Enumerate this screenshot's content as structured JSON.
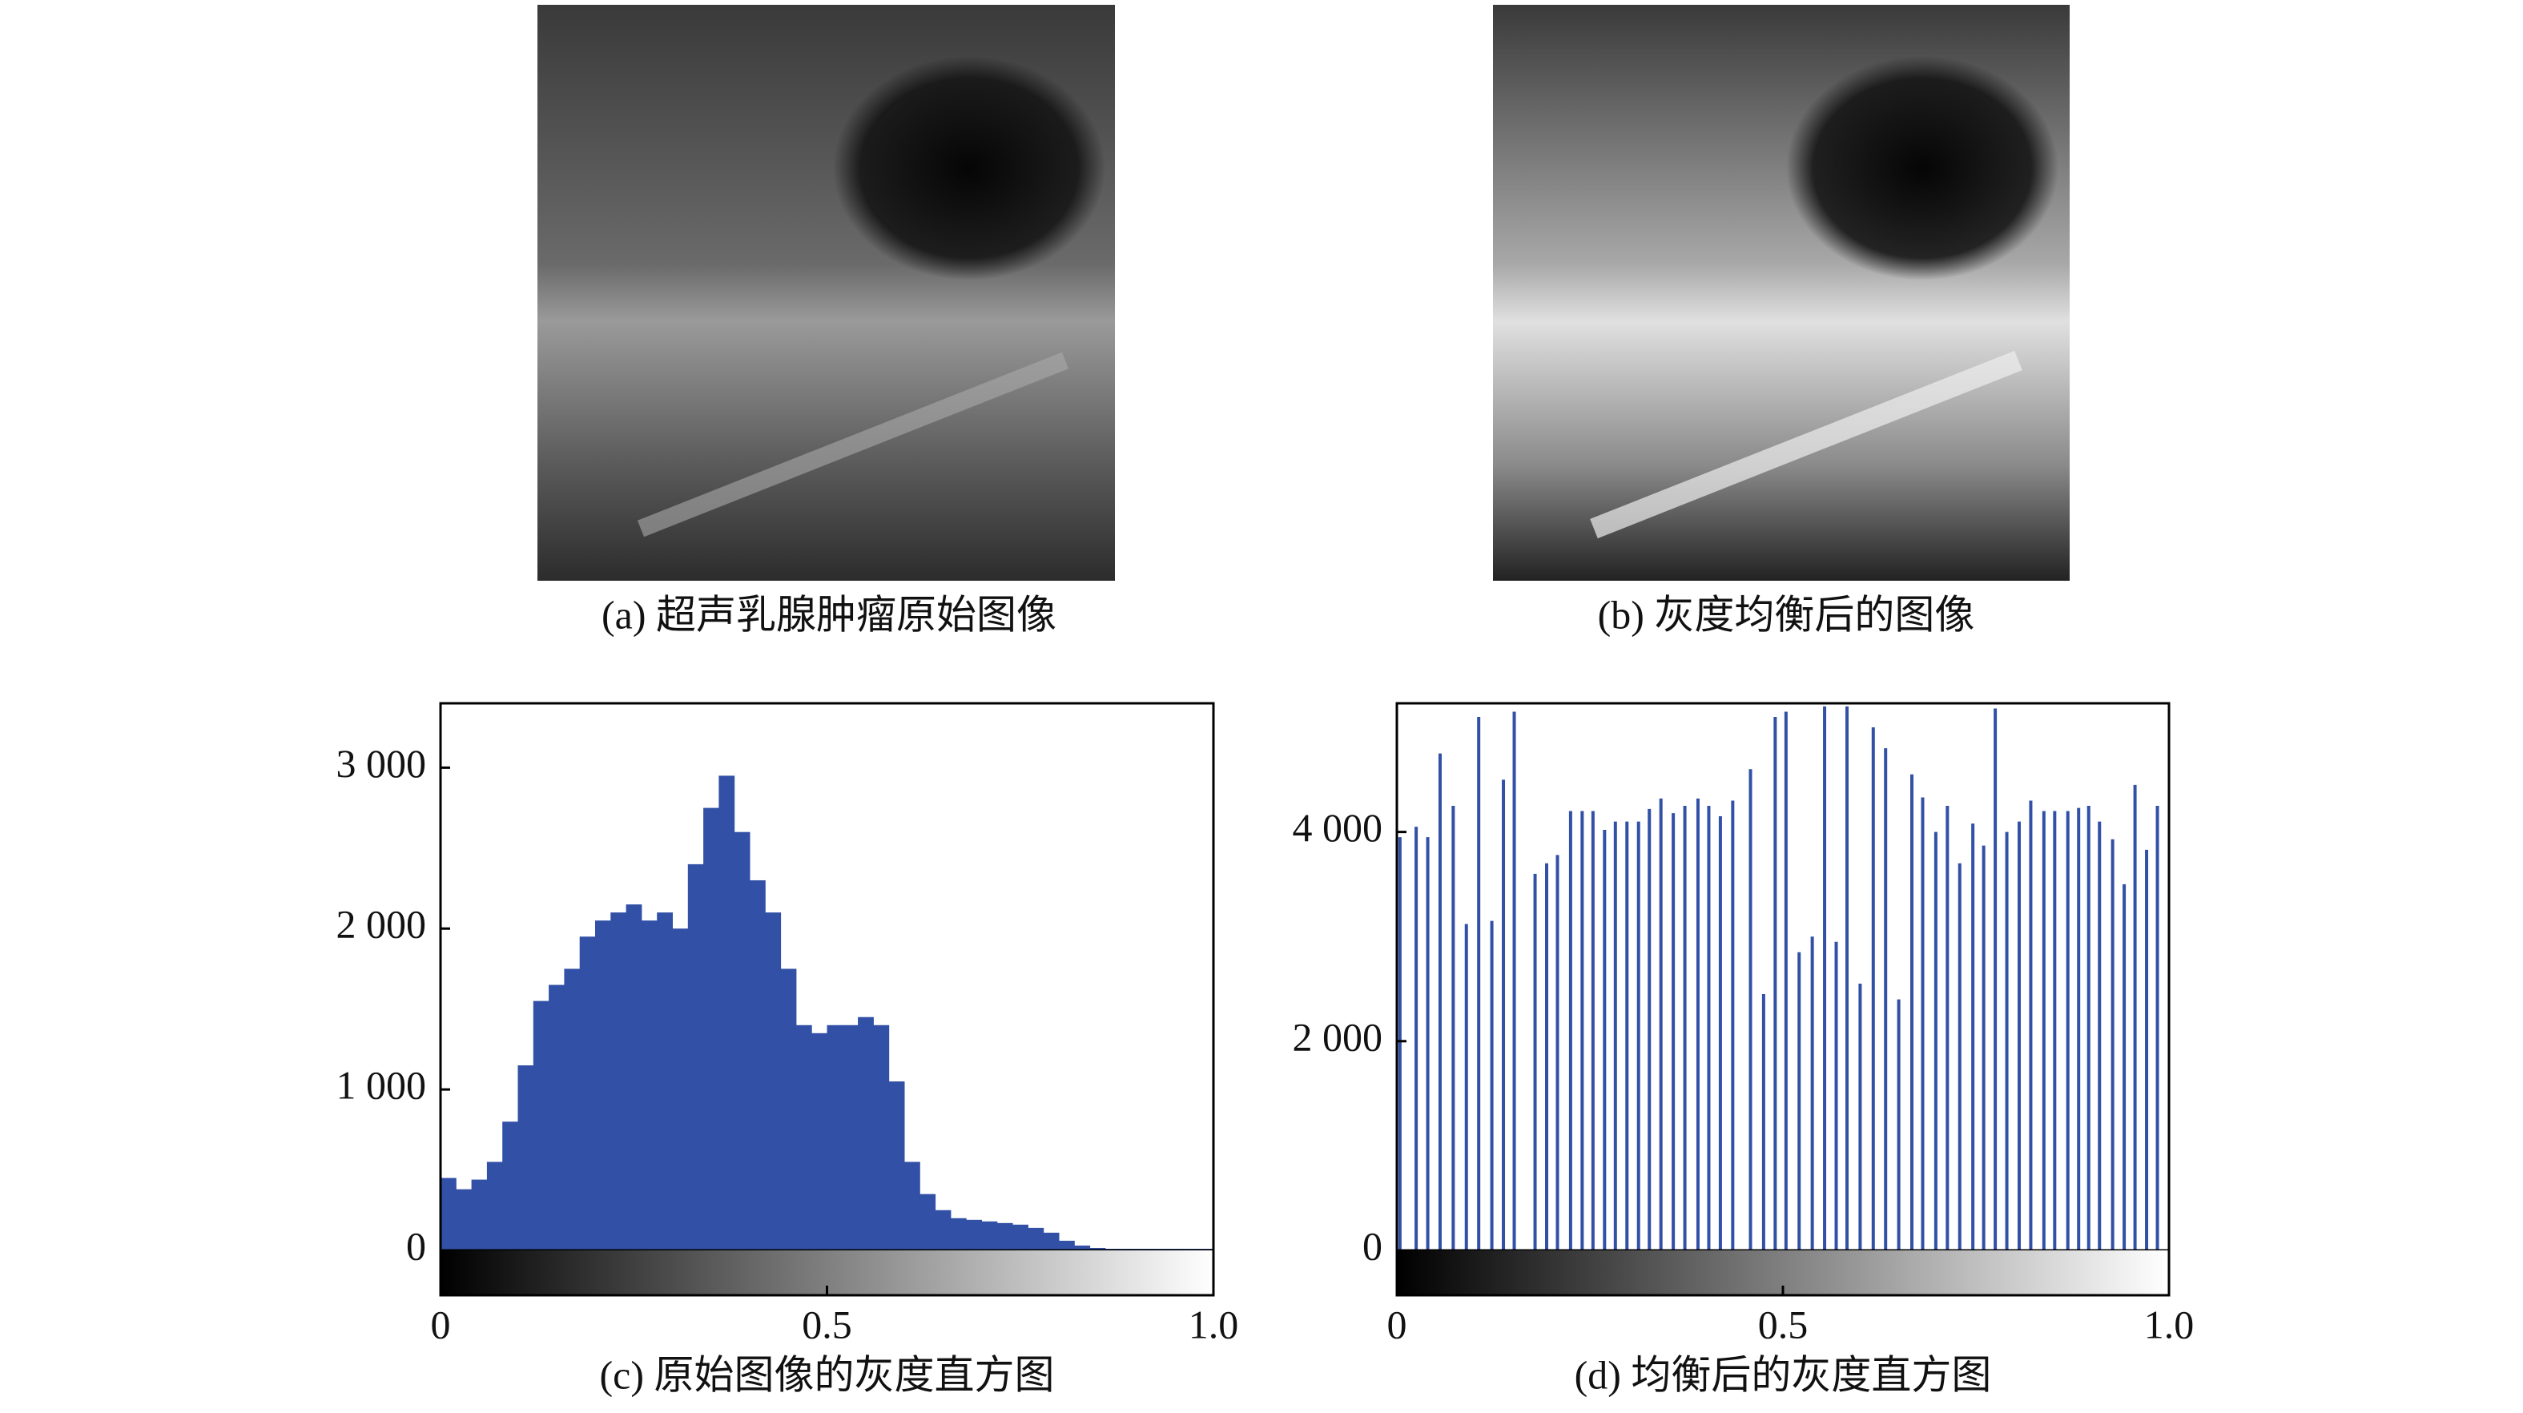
{
  "figures": [
    {
      "caption": "(a) 超声乳腺肿瘤原始图像"
    },
    {
      "caption": "(b) 灰度均衡后的图像"
    }
  ],
  "chart_data": [
    {
      "type": "histogram",
      "caption": "(c) 原始图像的灰度直方图",
      "color": "#3150a6",
      "bins": [
        0,
        0.02,
        0.04,
        0.06,
        0.08,
        0.1,
        0.12,
        0.14,
        0.16,
        0.18,
        0.2,
        0.22,
        0.24,
        0.26,
        0.28,
        0.3,
        0.32,
        0.34,
        0.36,
        0.38,
        0.4,
        0.42,
        0.44,
        0.46,
        0.48,
        0.5,
        0.52,
        0.54,
        0.56,
        0.58,
        0.6,
        0.62,
        0.64,
        0.66,
        0.68,
        0.7,
        0.72,
        0.74,
        0.76,
        0.78,
        0.8,
        0.82,
        0.84,
        0.86,
        0.88,
        0.9,
        0.92,
        0.94,
        0.96,
        0.98,
        1
      ],
      "values": [
        450,
        380,
        440,
        550,
        800,
        1150,
        1550,
        1650,
        1750,
        1950,
        2050,
        2100,
        2150,
        2050,
        2100,
        2000,
        2400,
        2750,
        2950,
        2600,
        2300,
        2100,
        1750,
        1400,
        1350,
        1400,
        1400,
        1450,
        1400,
        1050,
        550,
        350,
        250,
        200,
        190,
        180,
        170,
        160,
        140,
        110,
        60,
        30,
        15,
        10,
        10,
        10,
        10,
        10,
        10,
        10
      ],
      "xlim": [
        0,
        1
      ],
      "xticks": [
        0,
        0.5,
        {
          "value": 1,
          "label": "1.0"
        }
      ],
      "ylim": [
        0,
        3400
      ],
      "yticks": [
        0,
        {
          "value": 1000,
          "label": "1 000"
        },
        {
          "value": 2000,
          "label": "2 000"
        },
        {
          "value": 3000,
          "label": "3 000"
        }
      ]
    },
    {
      "type": "stem",
      "caption": "(d) 均衡后的灰度直方图",
      "color": "#3150a6",
      "x": [
        0.004,
        0.025,
        0.04,
        0.056,
        0.073,
        0.09,
        0.106,
        0.123,
        0.138,
        0.152,
        0.179,
        0.194,
        0.208,
        0.225,
        0.24,
        0.254,
        0.269,
        0.283,
        0.298,
        0.313,
        0.327,
        0.342,
        0.358,
        0.373,
        0.39,
        0.404,
        0.419,
        0.435,
        0.458,
        0.475,
        0.49,
        0.504,
        0.521,
        0.538,
        0.554,
        0.569,
        0.583,
        0.6,
        0.617,
        0.633,
        0.65,
        0.667,
        0.681,
        0.698,
        0.713,
        0.729,
        0.746,
        0.76,
        0.775,
        0.79,
        0.806,
        0.821,
        0.838,
        0.852,
        0.869,
        0.883,
        0.896,
        0.91,
        0.927,
        0.942,
        0.956,
        0.971,
        0.985
      ],
      "values": [
        3950,
        4050,
        3950,
        4750,
        4250,
        3120,
        5100,
        3150,
        4500,
        5150,
        3600,
        3700,
        3780,
        4200,
        4200,
        4200,
        4020,
        4100,
        4100,
        4100,
        4220,
        4320,
        4180,
        4250,
        4320,
        4250,
        4150,
        4300,
        4600,
        2450,
        5100,
        5150,
        2850,
        3000,
        5200,
        2950,
        5200,
        2550,
        5000,
        4800,
        2400,
        4550,
        4330,
        4000,
        4250,
        3700,
        4080,
        3870,
        5180,
        4000,
        4100,
        4300,
        4200,
        4200,
        4200,
        4230,
        4250,
        4100,
        3930,
        3500,
        4450,
        3830,
        4250
      ],
      "xlim": [
        0,
        1
      ],
      "xticks": [
        0,
        0.5,
        {
          "value": 1,
          "label": "1.0"
        }
      ],
      "ylim": [
        0,
        5230
      ],
      "yticks": [
        0,
        {
          "value": 2000,
          "label": "2 000"
        },
        {
          "value": 4000,
          "label": "4 000"
        }
      ]
    }
  ]
}
